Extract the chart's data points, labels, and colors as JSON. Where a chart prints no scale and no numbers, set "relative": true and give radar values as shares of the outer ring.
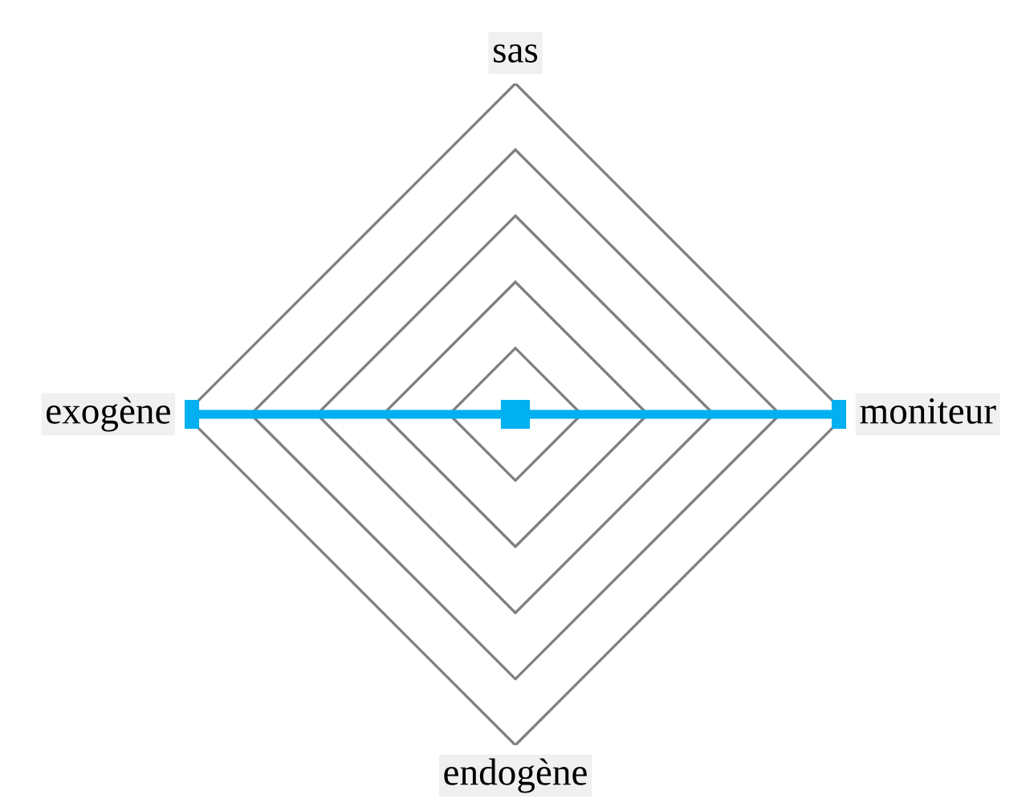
{
  "chart_data": {
    "type": "radar",
    "categories": [
      "sas",
      "moniteur",
      "endogène",
      "exogène"
    ],
    "relative": true,
    "grid": true,
    "marker": "square",
    "line_style": "solid",
    "series": [
      {
        "color": "#00b0f0",
        "values": [
          0,
          1,
          0,
          1
        ]
      }
    ]
  }
}
